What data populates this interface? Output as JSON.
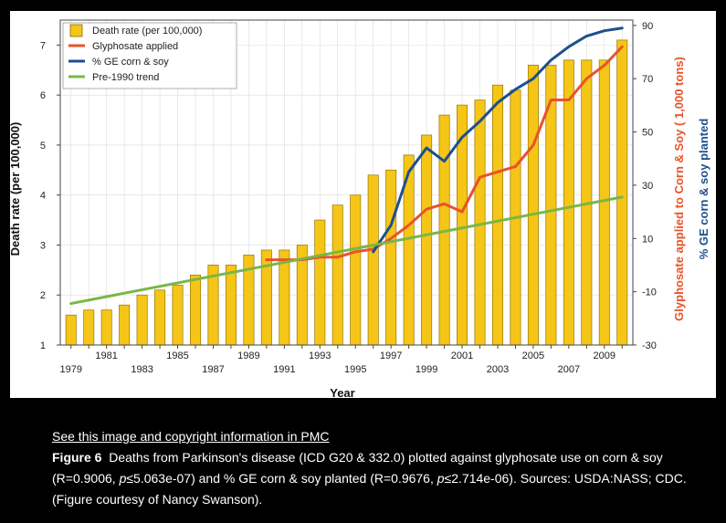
{
  "caption": {
    "link_text": "See this image and copyright information in PMC",
    "figure_label": "Figure 6",
    "text_1": "Deaths from Parkinson's disease (ICD G20 & 332.0) plotted against glyphosate use on corn & soy (R=0.9006, ",
    "p1": "p",
    "text_2": "≤5.063e-07) and % GE corn & soy planted (R=0.9676, ",
    "p2": "p",
    "text_3": "≤2.714e-06). Sources: USDA:NASS; CDC. (Figure courtesy of Nancy Swanson)."
  },
  "chart_data": {
    "type": "bar",
    "title": "",
    "xlabel": "Year",
    "ylabel": "Death rate (per 100,000)",
    "ylabel_right_1": "Glyphosate applied to Corn & Soy ( 1,000 tons)",
    "ylabel_right_2": "% GE corn & soy planted",
    "ylim": [
      1,
      7.5
    ],
    "ylim_right": [
      -30,
      92
    ],
    "y_ticks": [
      "1",
      "2",
      "3",
      "4",
      "5",
      "6",
      "7"
    ],
    "y_right_ticks": [
      "-30",
      "-10",
      "10",
      "30",
      "50",
      "70",
      "90"
    ],
    "x_ticks_low": [
      "1979",
      "1983",
      "1987",
      "1991",
      "1995",
      "1999",
      "2003",
      "2007"
    ],
    "x_ticks_high": [
      "1981",
      "1985",
      "1989",
      "1993",
      "1997",
      "2001",
      "2005",
      "2009"
    ],
    "categories": [
      1979,
      1980,
      1981,
      1982,
      1983,
      1984,
      1985,
      1986,
      1987,
      1988,
      1989,
      1990,
      1991,
      1992,
      1993,
      1994,
      1995,
      1996,
      1997,
      1998,
      1999,
      2000,
      2001,
      2002,
      2003,
      2004,
      2005,
      2006,
      2007,
      2008,
      2009,
      2010
    ],
    "series": [
      {
        "name": "Death rate (per 100,000)",
        "axis": "left",
        "color": "#f5c518",
        "values": [
          1.6,
          1.7,
          1.7,
          1.8,
          2.0,
          2.1,
          2.2,
          2.4,
          2.6,
          2.6,
          2.8,
          2.9,
          2.9,
          3.0,
          3.5,
          3.8,
          4.0,
          4.4,
          4.5,
          4.8,
          5.2,
          5.6,
          5.8,
          5.9,
          6.2,
          6.1,
          6.6,
          6.6,
          6.7,
          6.7,
          6.7,
          7.1
        ]
      },
      {
        "name": "Glyphosate applied",
        "axis": "right",
        "color": "#e8532a",
        "x": [
          1990,
          1991,
          1992,
          1993,
          1994,
          1995,
          1996,
          1997,
          1998,
          1999,
          2000,
          2001,
          2002,
          2003,
          2004,
          2005,
          2006,
          2007,
          2008,
          2009,
          2010
        ],
        "values": [
          2,
          2,
          2,
          3,
          3,
          5,
          6,
          10,
          15,
          21,
          23,
          20,
          33,
          35,
          37,
          45,
          62,
          62,
          70,
          75,
          82
        ]
      },
      {
        "name": "% GE corn & soy",
        "axis": "right",
        "color": "#1d4f8c",
        "x": [
          1996,
          1997,
          1998,
          1999,
          2000,
          2001,
          2002,
          2003,
          2004,
          2005,
          2006,
          2007,
          2008,
          2009,
          2010
        ],
        "values": [
          5,
          15,
          35,
          44,
          39,
          48,
          54,
          61,
          66,
          70,
          77,
          82,
          86,
          88,
          89
        ]
      },
      {
        "name": "Pre-1990 trend",
        "axis": "left",
        "color": "#7ab648",
        "x": [
          1979,
          2010
        ],
        "values": [
          1.83,
          3.96
        ]
      }
    ],
    "legend_position": "top-left"
  }
}
